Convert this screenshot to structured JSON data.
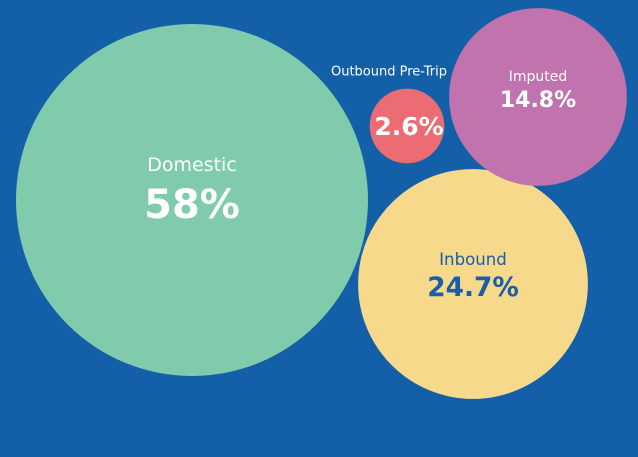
{
  "background_color": "#1460a8",
  "chart_data": {
    "type": "bubble",
    "title": "",
    "legend": "none",
    "grid": false,
    "unit": "%",
    "items": [
      {
        "label": "Domestic",
        "value": 58,
        "value_label": "58%",
        "color": "#7fcbab",
        "text_color": "#ffffff"
      },
      {
        "label": "Inbound",
        "value": 24.7,
        "value_label": "24.7%",
        "color": "#f7d98b",
        "text_color": "#1a5ea8"
      },
      {
        "label": "Imputed",
        "value": 14.8,
        "value_label": "14.8%",
        "color": "#c073ad",
        "text_color": "#ffffff"
      },
      {
        "label": "Outbound Pre-Trip",
        "value": 2.6,
        "value_label": "2.6%",
        "color": "#eb6d73",
        "text_color": "#ffffff",
        "label_outside": true
      }
    ]
  }
}
